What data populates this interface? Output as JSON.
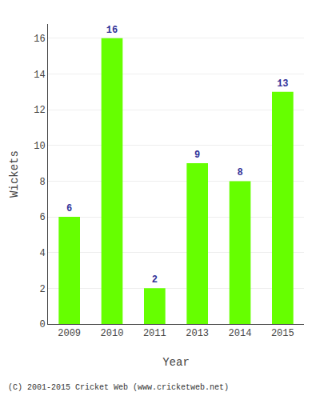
{
  "chart_data": {
    "type": "bar",
    "categories": [
      "2009",
      "2010",
      "2011",
      "2013",
      "2014",
      "2015"
    ],
    "values": [
      6,
      16,
      2,
      9,
      8,
      13
    ],
    "color": "#66ff00",
    "xlabel": "Year",
    "ylabel": "Wickets",
    "ylim": [
      0,
      16.8
    ],
    "yticks": [
      0,
      2,
      4,
      6,
      8,
      10,
      12,
      14,
      16
    ],
    "grid": true,
    "data_labels": true,
    "annotations": [
      "(C) 2001-2015 Cricket Web (www.cricketweb.net)"
    ]
  }
}
